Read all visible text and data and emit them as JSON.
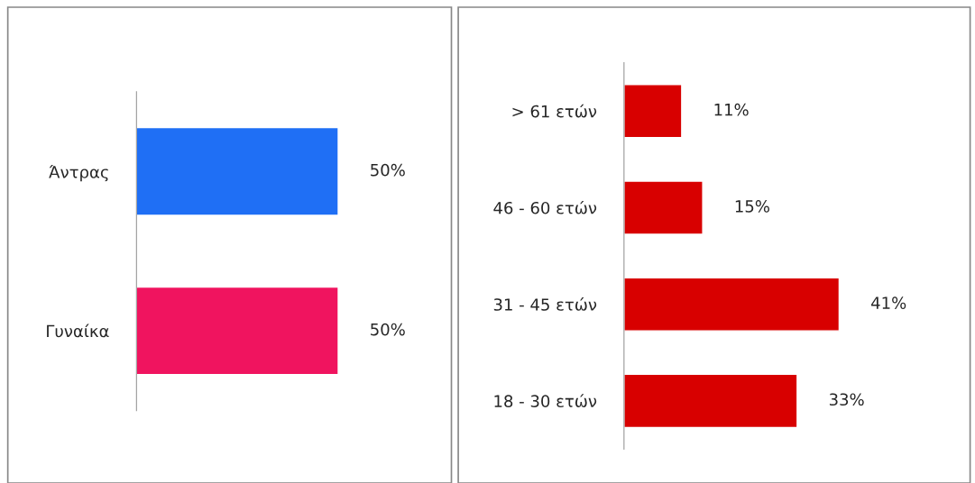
{
  "chart_data": [
    {
      "type": "bar",
      "orientation": "horizontal",
      "categories": [
        "Άντρας",
        "Γυναίκα"
      ],
      "values": [
        50,
        50
      ],
      "value_labels": [
        "50%",
        "50%"
      ],
      "colors": [
        "#1f6ff5",
        "#f0145f"
      ],
      "tick_labels": "y",
      "grid": false
    },
    {
      "type": "bar",
      "orientation": "horizontal",
      "categories": [
        "> 61 ετών",
        "46 - 60 ετών",
        "31 - 45 ετών",
        "18 - 30 ετών"
      ],
      "values": [
        11,
        15,
        41,
        33
      ],
      "value_labels": [
        "11%",
        "15%",
        "41%",
        "33%"
      ],
      "color": "#d80000",
      "tick_labels": "y",
      "grid": false
    }
  ]
}
